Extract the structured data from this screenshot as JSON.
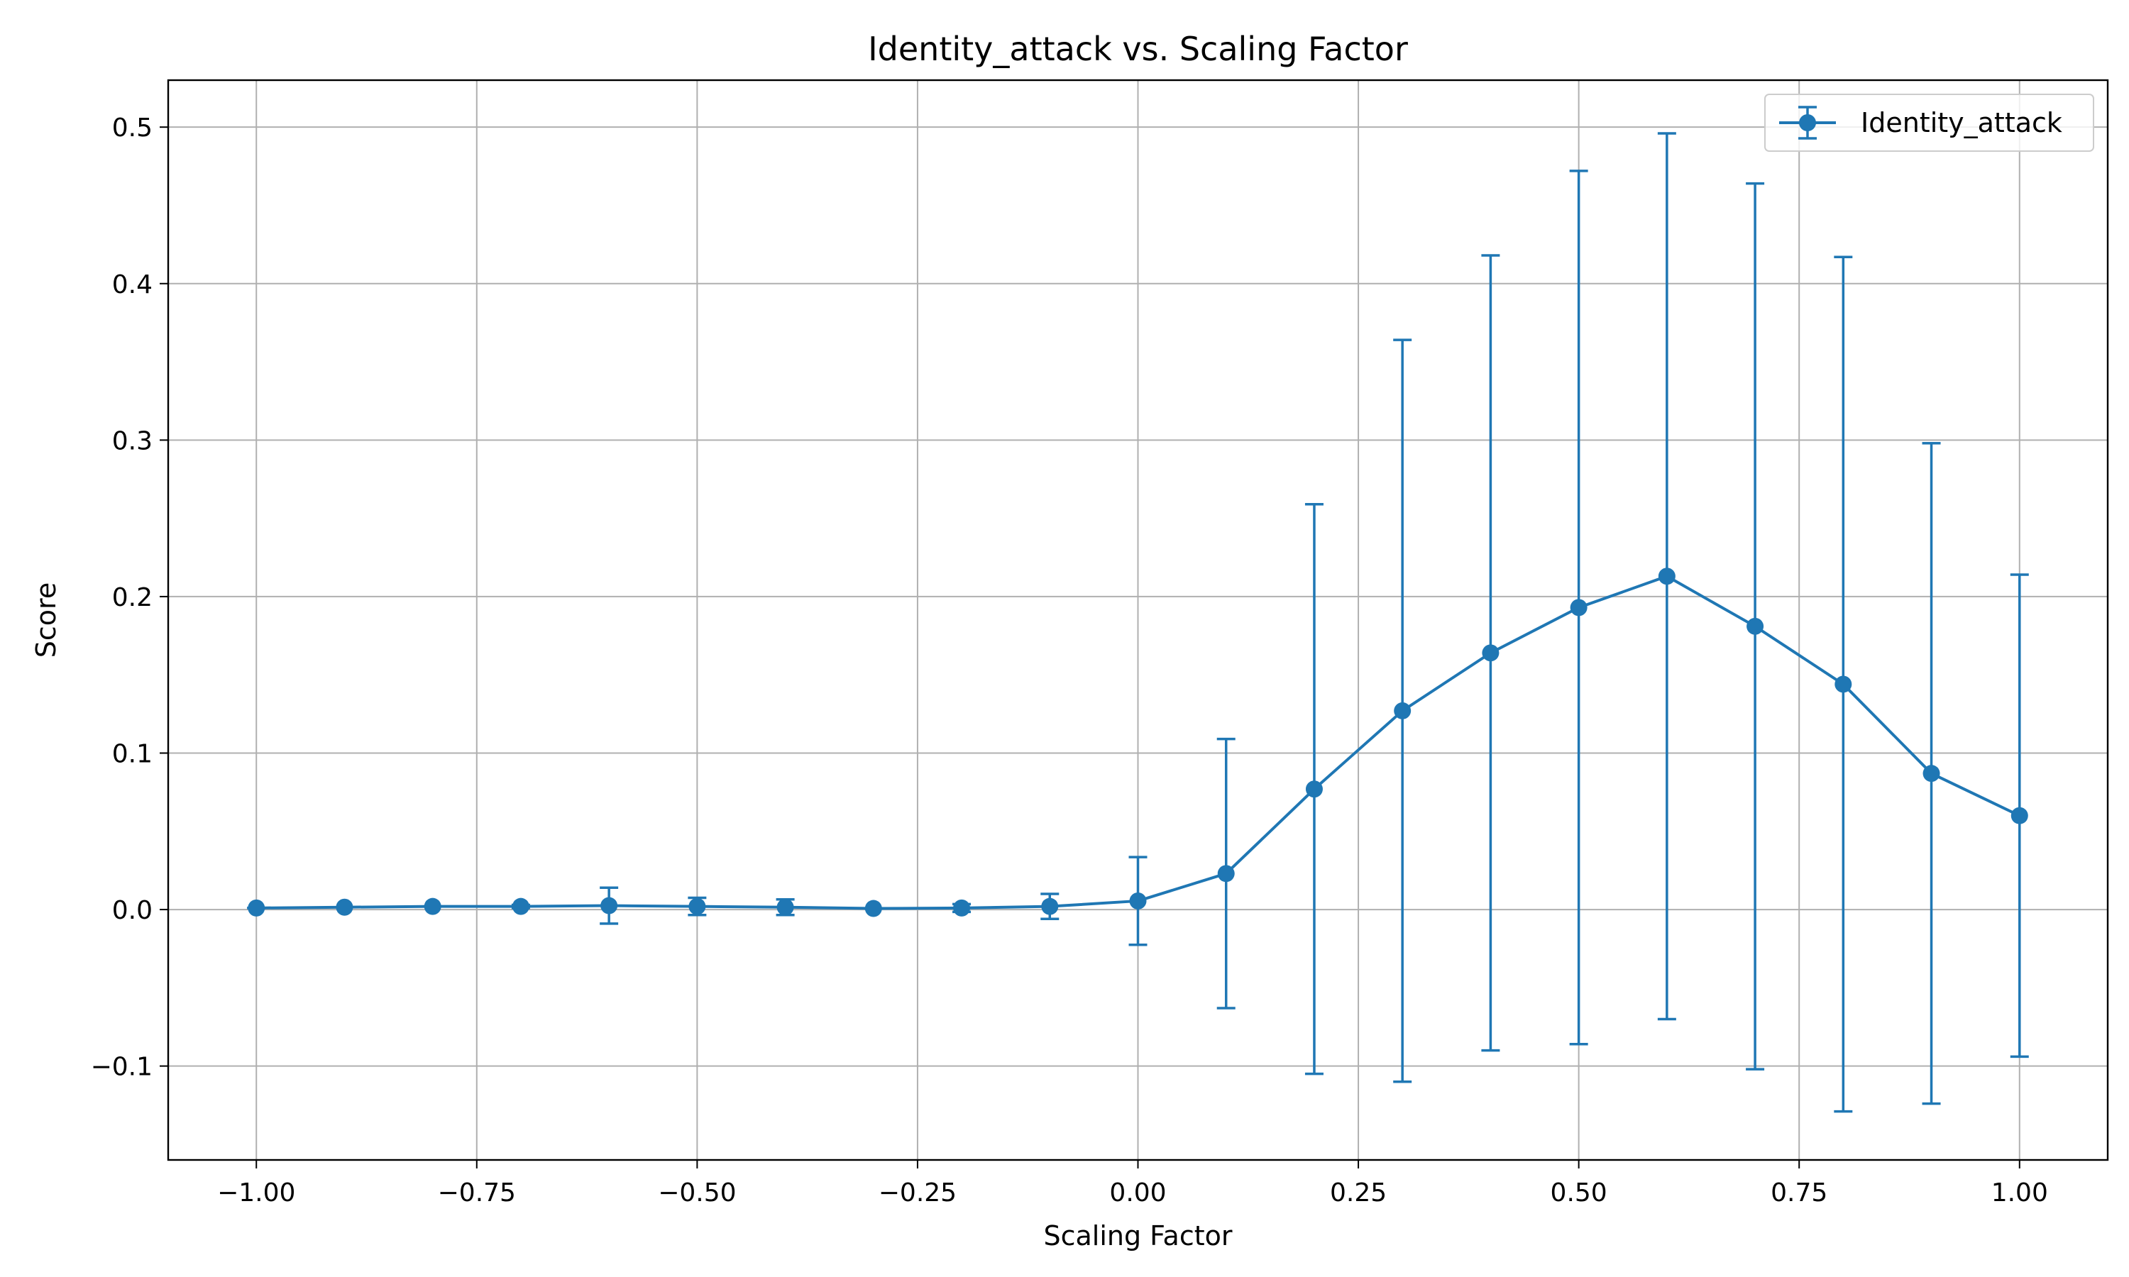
{
  "chart_data": {
    "type": "line",
    "title": "Identity_attack vs. Scaling Factor",
    "xlabel": "Scaling Factor",
    "ylabel": "Score",
    "xlim": [
      -1.1,
      1.1
    ],
    "ylim": [
      -0.16,
      0.53
    ],
    "xticks": [
      -1.0,
      -0.75,
      -0.5,
      -0.25,
      0.0,
      0.25,
      0.5,
      0.75,
      1.0
    ],
    "xtick_labels": [
      "−1.00",
      "−0.75",
      "−0.50",
      "−0.25",
      "0.00",
      "0.25",
      "0.50",
      "0.75",
      "1.00"
    ],
    "yticks": [
      -0.1,
      0.0,
      0.1,
      0.2,
      0.3,
      0.4,
      0.5
    ],
    "ytick_labels": [
      "−0.1",
      "0.0",
      "0.1",
      "0.2",
      "0.3",
      "0.4",
      "0.5"
    ],
    "grid": true,
    "legend_position": "top-right",
    "color": "#1f77b4",
    "series": [
      {
        "name": "Identity_attack",
        "x": [
          -1.0,
          -0.9,
          -0.8,
          -0.7,
          -0.6,
          -0.5,
          -0.4,
          -0.3,
          -0.2,
          -0.1,
          0.0,
          0.1,
          0.2,
          0.3,
          0.4,
          0.5,
          0.6,
          0.7,
          0.8,
          0.9,
          1.0
        ],
        "y": [
          0.001,
          0.0015,
          0.002,
          0.002,
          0.0025,
          0.002,
          0.0015,
          0.0007,
          0.001,
          0.002,
          0.0055,
          0.023,
          0.077,
          0.127,
          0.164,
          0.193,
          0.213,
          0.181,
          0.144,
          0.087,
          0.06
        ],
        "yerr": [
          0.0,
          0.0,
          0.0,
          0.001,
          0.0115,
          0.0055,
          0.005,
          0.0,
          0.0025,
          0.008,
          0.028,
          0.086,
          0.182,
          0.237,
          0.254,
          0.279,
          0.283,
          0.283,
          0.273,
          0.211,
          0.154
        ]
      }
    ]
  }
}
